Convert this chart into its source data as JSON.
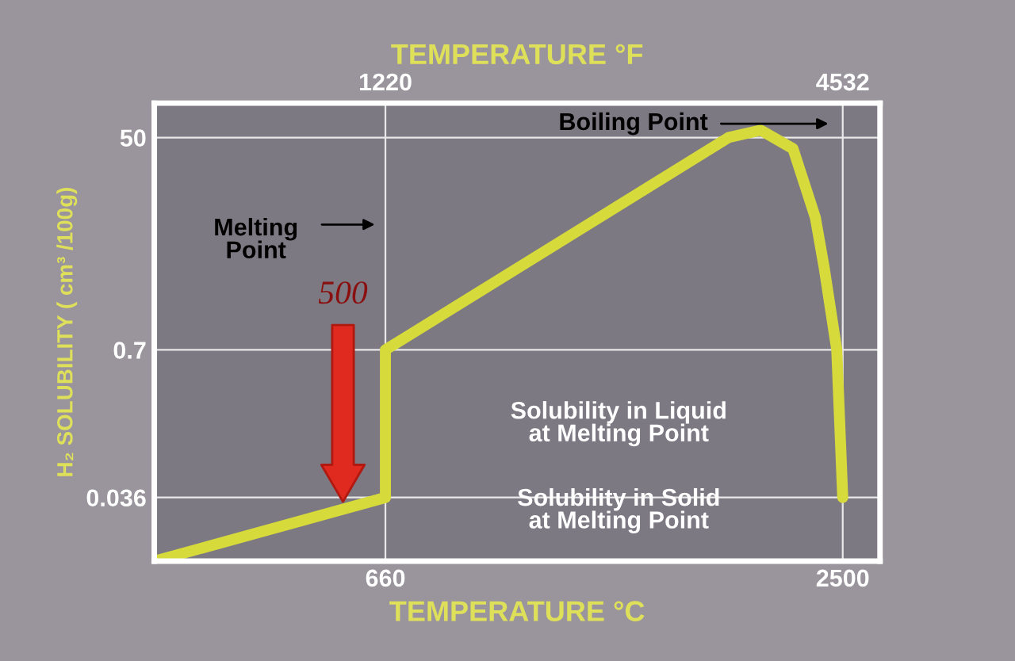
{
  "chart_data": {
    "type": "line",
    "xlabel": "TEMPERATURE °C",
    "x2label": "TEMPERATURE °F",
    "ylabel": "H₂ SOLUBILITY ( cm³ /100g)",
    "x": [
      -270,
      660,
      660,
      2040,
      2170,
      2300,
      2390,
      2425,
      2476,
      2500
    ],
    "series": [
      {
        "color": "#d6da3a",
        "values": [
          0.01,
          0.036,
          0.7,
          50,
          58,
          40,
          10,
          3.7,
          0.7,
          0.036
        ]
      }
    ],
    "log": "y",
    "xlim": [
      -270,
      2650
    ],
    "xticks": [
      660,
      2500
    ],
    "x2lim": [
      -454,
      4802
    ],
    "x2ticks": [
      1220,
      4532
    ],
    "ylim": [
      0.01,
      100
    ],
    "yticks": [
      0.036,
      0.7,
      50
    ],
    "grid": true,
    "marker": "none",
    "line_style": "solid",
    "annotations": [
      "Boiling Point",
      "Melting\nPoint",
      "500",
      "Solubility in Liquid\nat Melting Point",
      "Solubility in Solid\nat Melting Point"
    ]
  }
}
